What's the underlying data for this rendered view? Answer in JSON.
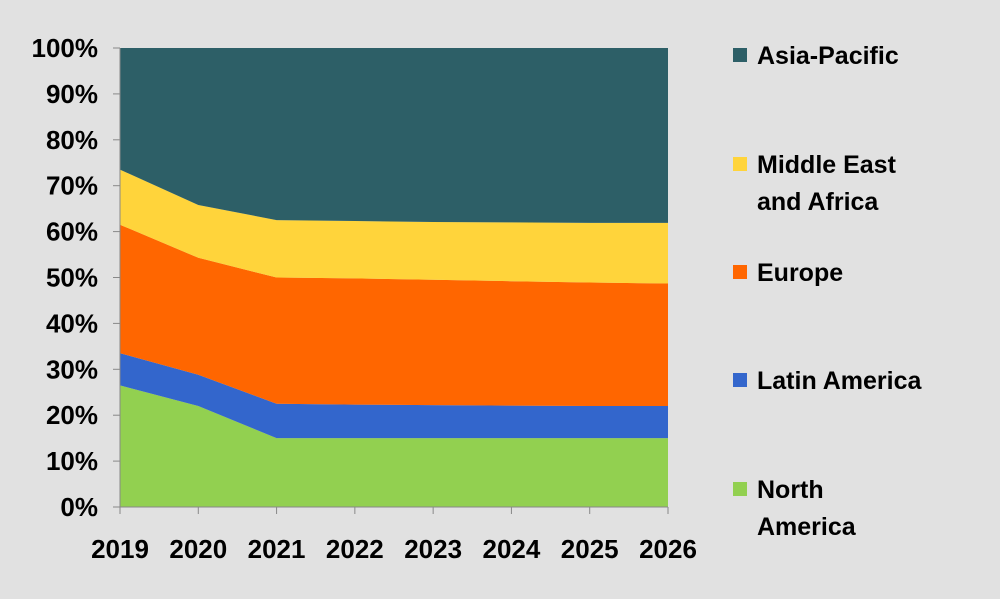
{
  "chart_data": {
    "type": "area",
    "stacked": true,
    "percent": true,
    "x": [
      2019,
      2020,
      2021,
      2022,
      2023,
      2024,
      2025,
      2026
    ],
    "series": [
      {
        "name": "North America",
        "color": "#92d050",
        "values": [
          26.5,
          22.0,
          15.0,
          15.0,
          15.0,
          15.0,
          15.0,
          15.0
        ]
      },
      {
        "name": "Latin America",
        "color": "#3366cc",
        "values": [
          7.0,
          6.8,
          7.5,
          7.3,
          7.2,
          7.1,
          7.0,
          7.0
        ]
      },
      {
        "name": "Europe",
        "color": "#ff6600",
        "values": [
          28.0,
          25.5,
          27.5,
          27.5,
          27.3,
          27.1,
          26.9,
          26.7
        ]
      },
      {
        "name": "Middle East and Africa",
        "color": "#ffd43b",
        "values": [
          12.0,
          11.5,
          12.5,
          12.5,
          12.6,
          12.8,
          13.0,
          13.2
        ]
      },
      {
        "name": "Asia-Pacific",
        "color": "#2d5f67",
        "values": [
          26.5,
          34.2,
          37.5,
          37.7,
          37.9,
          38.0,
          38.1,
          38.1
        ]
      }
    ],
    "y_ticks": [
      "0%",
      "10%",
      "20%",
      "30%",
      "40%",
      "50%",
      "60%",
      "70%",
      "80%",
      "90%",
      "100%"
    ],
    "ylim": [
      0,
      100
    ],
    "legend_position": "right",
    "legend": [
      {
        "lines": [
          "Asia-Pacific"
        ],
        "series": "Asia-Pacific"
      },
      {
        "lines": [
          "Middle East",
          "and Africa"
        ],
        "series": "Middle East and Africa"
      },
      {
        "lines": [
          "Europe"
        ],
        "series": "Europe"
      },
      {
        "lines": [
          "Latin America"
        ],
        "series": "Latin America"
      },
      {
        "lines": [
          "North",
          "America"
        ],
        "series": "North America"
      }
    ]
  }
}
